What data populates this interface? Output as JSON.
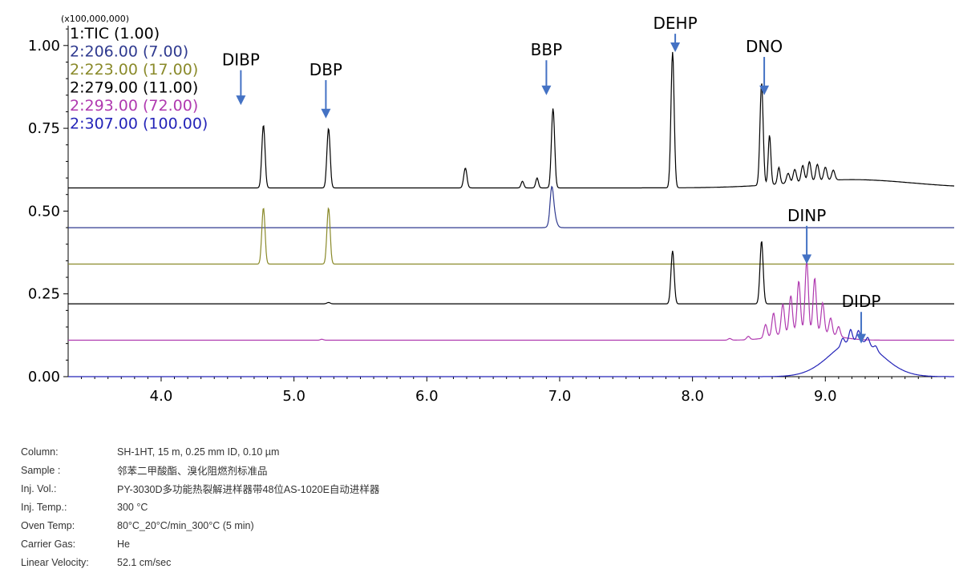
{
  "chart_data": {
    "type": "line",
    "y_exponent_label": "(x100,000,000)",
    "xlim": [
      3.3,
      9.97
    ],
    "ylim": [
      0,
      1.06
    ],
    "x_ticks": [
      4.0,
      5.0,
      6.0,
      7.0,
      8.0,
      9.0
    ],
    "x_tick_labels": [
      "4.0",
      "5.0",
      "6.0",
      "7.0",
      "8.0",
      "9.0"
    ],
    "y_ticks": [
      0.0,
      0.25,
      0.5,
      0.75,
      1.0
    ],
    "y_tick_labels": [
      "0.00",
      "0.25",
      "0.50",
      "0.75",
      "1.00"
    ],
    "grid": false,
    "legend_position": "top-left",
    "series": [
      {
        "name": "1:TIC (1.00)",
        "color": "#000000",
        "baseline": 0.57,
        "peaks": [
          {
            "x": 4.77,
            "h": 0.19,
            "w": 0.012
          },
          {
            "x": 5.26,
            "h": 0.18,
            "w": 0.012
          },
          {
            "x": 6.29,
            "h": 0.06,
            "w": 0.012
          },
          {
            "x": 6.72,
            "h": 0.02,
            "w": 0.01
          },
          {
            "x": 6.83,
            "h": 0.03,
            "w": 0.01
          },
          {
            "x": 6.95,
            "h": 0.24,
            "w": 0.012
          },
          {
            "x": 7.85,
            "h": 0.41,
            "w": 0.012
          },
          {
            "x": 8.52,
            "h": 0.31,
            "w": 0.012
          },
          {
            "x": 8.58,
            "h": 0.15,
            "w": 0.01
          },
          {
            "x": 8.65,
            "h": 0.05,
            "w": 0.01
          },
          {
            "x": 8.72,
            "h": 0.03,
            "w": 0.012
          },
          {
            "x": 8.77,
            "h": 0.04,
            "w": 0.012
          },
          {
            "x": 8.83,
            "h": 0.05,
            "w": 0.012
          },
          {
            "x": 8.88,
            "h": 0.06,
            "w": 0.012
          },
          {
            "x": 8.94,
            "h": 0.05,
            "w": 0.012
          },
          {
            "x": 9.0,
            "h": 0.04,
            "w": 0.012
          },
          {
            "x": 9.06,
            "h": 0.03,
            "w": 0.012
          }
        ],
        "hump": {
          "x": 9.2,
          "h": 0.025,
          "w": 0.45
        }
      },
      {
        "name": "2:206.00 (7.00)",
        "color": "#2f3a8f",
        "baseline": 0.45,
        "peaks": [
          {
            "x": 6.94,
            "h": 0.08,
            "w": 0.012
          },
          {
            "x": 6.95,
            "h": 0.05,
            "w": 0.02
          }
        ],
        "hump": null
      },
      {
        "name": "2:223.00 (17.00)",
        "color": "#8a8a2a",
        "baseline": 0.34,
        "peaks": [
          {
            "x": 4.77,
            "h": 0.17,
            "w": 0.012
          },
          {
            "x": 5.26,
            "h": 0.17,
            "w": 0.012
          }
        ],
        "hump": null
      },
      {
        "name": "2:279.00 (11.00)",
        "color": "#000000",
        "baseline": 0.22,
        "peaks": [
          {
            "x": 5.26,
            "h": 0.004,
            "w": 0.012
          },
          {
            "x": 7.85,
            "h": 0.16,
            "w": 0.012
          },
          {
            "x": 8.52,
            "h": 0.19,
            "w": 0.012
          }
        ],
        "hump": null
      },
      {
        "name": "2:293.00 (72.00)",
        "color": "#b03ab0",
        "baseline": 0.11,
        "peaks": [
          {
            "x": 5.21,
            "h": 0.003,
            "w": 0.012
          },
          {
            "x": 8.28,
            "h": 0.005,
            "w": 0.012
          },
          {
            "x": 8.42,
            "h": 0.01,
            "w": 0.012
          },
          {
            "x": 8.55,
            "h": 0.04,
            "w": 0.012
          },
          {
            "x": 8.61,
            "h": 0.07,
            "w": 0.012
          },
          {
            "x": 8.68,
            "h": 0.09,
            "w": 0.012
          },
          {
            "x": 8.74,
            "h": 0.11,
            "w": 0.012
          },
          {
            "x": 8.8,
            "h": 0.15,
            "w": 0.012
          },
          {
            "x": 8.86,
            "h": 0.21,
            "w": 0.012
          },
          {
            "x": 8.92,
            "h": 0.16,
            "w": 0.012
          },
          {
            "x": 8.98,
            "h": 0.09,
            "w": 0.012
          },
          {
            "x": 9.04,
            "h": 0.05,
            "w": 0.012
          },
          {
            "x": 9.1,
            "h": 0.03,
            "w": 0.012
          }
        ],
        "hump": {
          "x": 8.85,
          "h": 0.03,
          "w": 0.18
        }
      },
      {
        "name": "2:307.00 (100.00)",
        "color": "#2424b8",
        "baseline": 0.0,
        "peaks": [
          {
            "x": 9.13,
            "h": 0.02,
            "w": 0.012
          },
          {
            "x": 9.19,
            "h": 0.035,
            "w": 0.012
          },
          {
            "x": 9.25,
            "h": 0.03,
            "w": 0.012
          },
          {
            "x": 9.32,
            "h": 0.02,
            "w": 0.012
          },
          {
            "x": 9.38,
            "h": 0.012,
            "w": 0.012
          }
        ],
        "hump": {
          "x": 9.23,
          "h": 0.11,
          "w": 0.19
        }
      }
    ],
    "annotations": [
      {
        "text": "DIBP",
        "x": 4.6,
        "y_label": 0.94,
        "y_arrow_end": 0.82
      },
      {
        "text": "DBP",
        "x": 5.24,
        "y_label": 0.91,
        "y_arrow_end": 0.78
      },
      {
        "text": "BBP",
        "x": 6.9,
        "y_label": 0.97,
        "y_arrow_end": 0.85
      },
      {
        "text": "DEHP",
        "x": 7.87,
        "y_label": 1.05,
        "y_arrow_end": 0.98
      },
      {
        "text": "DNO",
        "x": 8.54,
        "y_label": 0.98,
        "y_arrow_end": 0.85
      },
      {
        "text": "DINP",
        "x": 8.86,
        "y_label": 0.47,
        "y_arrow_end": 0.34
      },
      {
        "text": "DIDP",
        "x": 9.27,
        "y_label": 0.21,
        "y_arrow_end": 0.1
      }
    ]
  },
  "conditions": [
    {
      "label": "Column:",
      "value": "SH-1HT, 15 m, 0.25 mm ID, 0.10 µm"
    },
    {
      "label": "Sample :",
      "value": "邻苯二甲酸酯、溴化阻燃剂标准品"
    },
    {
      "label": "Inj. Vol.:",
      "value": "PY-3030D多功能热裂解进样器带48位AS-1020E自动进样器"
    },
    {
      "label": "Inj. Temp.:",
      "value": "300 °C"
    },
    {
      "label": "Oven Temp:",
      "value": "80°C_20°C/min_300°C (5 min)"
    },
    {
      "label": "Carrier Gas:",
      "value": "He"
    },
    {
      "label": "Linear Velocity:",
      "value": "52.1 cm/sec"
    }
  ],
  "colors": {
    "arrow": "#4472c4",
    "axis": "#000000"
  }
}
